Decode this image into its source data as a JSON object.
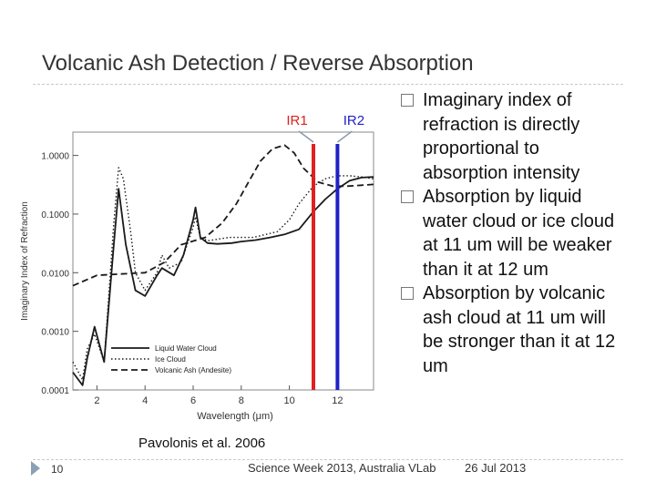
{
  "slide": {
    "title": "Volcanic Ash Detection / Reverse Absorption",
    "number": "10",
    "footer": "Science Week 2013, Australia VLab",
    "date": "26 Jul 2013",
    "citation": "Pavolonis et al. 2006"
  },
  "bullets": [
    "Imaginary index of refraction is directly proportional to absorption intensity",
    "Absorption by liquid water cloud or ice cloud at 11 um will be weaker than it at 12 um",
    "Absorption by volcanic ash cloud at 11 um will be stronger than it at 12 um"
  ],
  "chart_data": {
    "type": "line",
    "ylabel": "Imaginary Index of Refraction",
    "xlabel": "Wavelength (μm)",
    "xlim": [
      1,
      13.5
    ],
    "ylim": [
      0.0001,
      2.5
    ],
    "yscale": "log",
    "x_ticks": [
      "2",
      "4",
      "6",
      "8",
      "10",
      "12"
    ],
    "y_ticks": [
      "1.0000",
      "0.1000",
      "0.0100",
      "0.0010",
      "0.0001"
    ],
    "legend_position": "bottom-left",
    "series": [
      {
        "name": "Liquid Water Cloud",
        "style": "solid",
        "x": [
          1.0,
          1.4,
          1.6,
          1.9,
          2.3,
          2.7,
          2.9,
          3.2,
          3.6,
          4.0,
          4.5,
          4.7,
          5.2,
          5.6,
          6.0,
          6.1,
          6.3,
          6.6,
          7.0,
          7.6,
          8.0,
          8.6,
          9.2,
          9.8,
          10.4,
          11.0,
          11.5,
          12.0,
          12.5,
          13.0,
          13.5
        ],
        "y": [
          0.0002,
          0.00012,
          0.00035,
          0.0012,
          0.0003,
          0.03,
          0.27,
          0.03,
          0.005,
          0.004,
          0.009,
          0.012,
          0.009,
          0.02,
          0.08,
          0.13,
          0.04,
          0.032,
          0.031,
          0.032,
          0.034,
          0.036,
          0.04,
          0.045,
          0.055,
          0.11,
          0.18,
          0.27,
          0.37,
          0.42,
          0.43
        ]
      },
      {
        "name": "Ice Cloud",
        "style": "dotted",
        "x": [
          1.0,
          1.4,
          1.6,
          1.9,
          2.3,
          2.7,
          2.9,
          3.1,
          3.4,
          3.6,
          4.0,
          4.5,
          4.7,
          5.0,
          5.5,
          6.0,
          6.1,
          6.3,
          6.6,
          7.5,
          8.5,
          9.5,
          10.0,
          10.4,
          11.0,
          11.5,
          12.0,
          12.5,
          13.0,
          13.5
        ],
        "y": [
          0.0003,
          0.00015,
          0.0005,
          0.0009,
          0.0003,
          0.07,
          0.62,
          0.4,
          0.05,
          0.01,
          0.005,
          0.01,
          0.02,
          0.012,
          0.015,
          0.06,
          0.09,
          0.04,
          0.035,
          0.04,
          0.04,
          0.05,
          0.08,
          0.15,
          0.3,
          0.4,
          0.45,
          0.45,
          0.43,
          0.4
        ]
      },
      {
        "name": "Volcanic Ash (Andesite)",
        "style": "dashed",
        "x": [
          1.0,
          2.0,
          3.0,
          4.0,
          4.8,
          5.5,
          6.5,
          7.2,
          7.8,
          8.3,
          8.8,
          9.3,
          9.8,
          10.2,
          10.6,
          11.2,
          11.8,
          12.4,
          13.0,
          13.5
        ],
        "y": [
          0.006,
          0.009,
          0.0095,
          0.01,
          0.015,
          0.03,
          0.04,
          0.07,
          0.15,
          0.35,
          0.8,
          1.3,
          1.5,
          1.1,
          0.6,
          0.35,
          0.3,
          0.3,
          0.31,
          0.32
        ]
      }
    ],
    "bands": [
      {
        "label": "IR1",
        "x": 11.0,
        "color": "#e02020"
      },
      {
        "label": "IR2",
        "x": 12.0,
        "color": "#2020c8"
      }
    ]
  }
}
